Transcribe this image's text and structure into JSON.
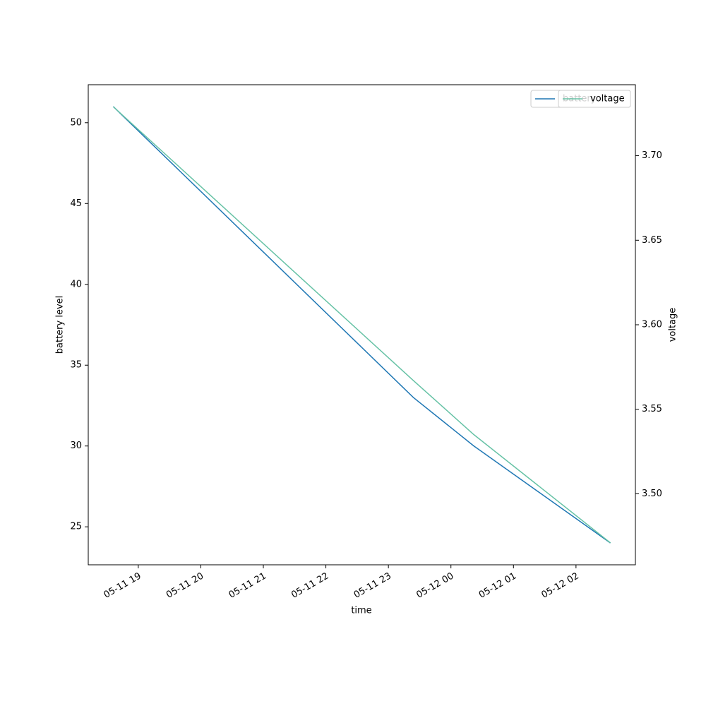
{
  "chart_data": {
    "type": "line",
    "xlabel": "time",
    "ylabel": "battery level",
    "y2label": "voltage",
    "x": [
      "05-11 18:36",
      "05-11 23:24",
      "05-12 00:22",
      "05-12 02:33"
    ],
    "series": [
      {
        "name": "battery",
        "color": "#1f77b4",
        "values": [
          51,
          33,
          30,
          24
        ]
      },
      {
        "name": "voltage",
        "color": "#66c2a5",
        "axis": "y2",
        "values": [
          3.729,
          3.567,
          3.535,
          3.471
        ]
      }
    ],
    "xlim": [
      "05-11 18:12",
      "05-12 02:57"
    ],
    "xticks": [
      "05-11 19",
      "05-11 20",
      "05-11 21",
      "05-11 22",
      "05-11 23",
      "05-12 00",
      "05-12 01",
      "05-12 02"
    ],
    "ylim": [
      22.65,
      52.35
    ],
    "yticks": [
      25,
      30,
      35,
      40,
      45,
      50
    ],
    "y2lim": [
      3.458,
      3.742
    ],
    "y2ticks": [
      {
        "value": 3.5,
        "label": "3.50"
      },
      {
        "value": 3.55,
        "label": "3.55"
      },
      {
        "value": 3.6,
        "label": "3.60"
      },
      {
        "value": 3.65,
        "label": "3.65"
      },
      {
        "value": 3.7,
        "label": "3.70"
      }
    ],
    "legend": "upper right"
  }
}
